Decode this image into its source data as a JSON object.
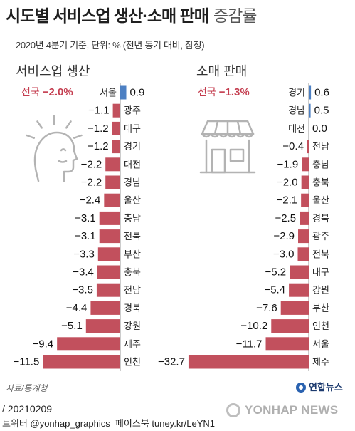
{
  "header": {
    "title_main": "시도별 서비스업 생산·소매 판매",
    "title_light": "증감률",
    "subtitle": "2020년 4분기 기준, 단위: % (전년 동기 대비, 잠정)"
  },
  "colors": {
    "negative": "#c2505d",
    "positive": "#4d80c3",
    "accent": "#c43d4f",
    "axis": "#9a9a9a",
    "icon": "#b3b3b3"
  },
  "chart_data": [
    {
      "type": "bar",
      "orientation": "horizontal",
      "title": "서비스업 생산",
      "national": {
        "label": "전국",
        "value": "−2.0%"
      },
      "icon": "service-person-icon",
      "categories": [
        "서울",
        "광주",
        "대구",
        "경기",
        "대전",
        "경남",
        "울산",
        "충남",
        "전북",
        "부산",
        "충북",
        "전남",
        "경북",
        "강원",
        "제주",
        "인천"
      ],
      "values": [
        0.9,
        -1.1,
        -1.2,
        -1.2,
        -2.2,
        -2.2,
        -2.4,
        -3.1,
        -3.1,
        -3.3,
        -3.4,
        -3.5,
        -4.4,
        -5.1,
        -9.4,
        -11.5
      ]
    },
    {
      "type": "bar",
      "orientation": "horizontal",
      "title": "소매 판매",
      "national": {
        "label": "전국",
        "value": "−1.3%"
      },
      "icon": "store-icon",
      "categories": [
        "경기",
        "경남",
        "대전",
        "전남",
        "충남",
        "충북",
        "울산",
        "경북",
        "광주",
        "전북",
        "대구",
        "강원",
        "부산",
        "인천",
        "서울",
        "제주"
      ],
      "values": [
        0.6,
        0.5,
        0.0,
        -0.4,
        -1.9,
        -2.0,
        -2.1,
        -2.5,
        -2.9,
        -3.0,
        -5.2,
        -5.4,
        -7.6,
        -10.2,
        -11.7,
        -32.7
      ]
    }
  ],
  "footer": {
    "source": "자료/통계청",
    "logo": "연합뉴스",
    "date": "/ 20210209",
    "social": "트위터 @yonhap_graphics  페이스북 tuney.kr/LeYN1",
    "watermark": "YONHAP NEWS"
  }
}
